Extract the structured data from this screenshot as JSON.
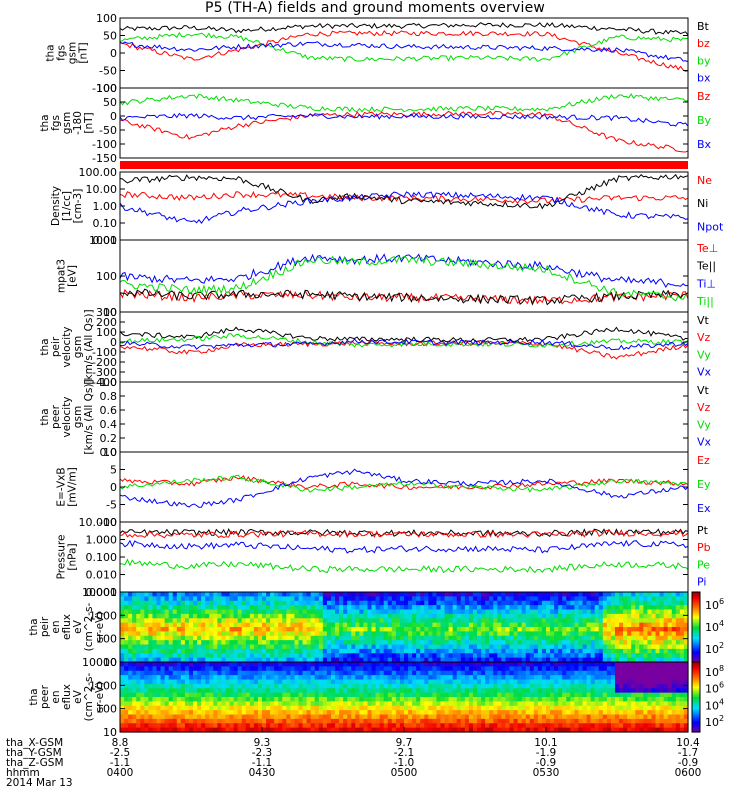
{
  "title": "P5 (TH-A) fields and ground moments overview",
  "date_label": "2014 Mar 13",
  "ephemeris": {
    "rows": [
      {
        "label": "tha_X-GSM",
        "values": [
          "8.8",
          "9.3",
          "9.7",
          "10.1",
          "10.4"
        ]
      },
      {
        "label": "tha_Y-GSM",
        "values": [
          "-2.5",
          "-2.3",
          "-2.1",
          "-1.9",
          "-1.7"
        ]
      },
      {
        "label": "tha_Z-GSM",
        "values": [
          "-1.1",
          "-1.1",
          "-1.0",
          "-0.9",
          "-0.9"
        ]
      },
      {
        "label": "hhmm",
        "values": [
          "0400",
          "0430",
          "0500",
          "0530",
          "0600"
        ]
      }
    ]
  },
  "chart_data": [
    {
      "type": "line",
      "panel": "fgs-dsl",
      "ylabel": [
        "tha",
        "fgs",
        "gsm",
        "[nT]"
      ],
      "yticks": [
        "100",
        "50",
        "0",
        "-50",
        "-100"
      ],
      "ylim": [
        -110,
        110
      ],
      "legend": [
        {
          "name": "Bt",
          "color": "#000000"
        },
        {
          "name": "bz",
          "color": "#ff0000"
        },
        {
          "name": "by",
          "color": "#00dd00"
        },
        {
          "name": "bx",
          "color": "#0000ff"
        }
      ],
      "x": [
        0,
        15,
        25,
        40,
        50,
        60,
        75,
        90,
        105,
        120
      ],
      "series": [
        {
          "name": "Bt",
          "color": "#000000",
          "values": [
            75,
            80,
            70,
            85,
            85,
            85,
            88,
            88,
            75,
            60
          ]
        },
        {
          "name": "bz",
          "color": "#ff0000",
          "values": [
            30,
            -20,
            10,
            60,
            62,
            62,
            62,
            60,
            0,
            -55
          ]
        },
        {
          "name": "by",
          "color": "#00dd00",
          "values": [
            40,
            60,
            50,
            -15,
            -20,
            -18,
            -15,
            -20,
            50,
            40
          ]
        },
        {
          "name": "bx",
          "color": "#0000ff",
          "values": [
            30,
            10,
            20,
            30,
            25,
            20,
            18,
            15,
            10,
            -25
          ]
        }
      ]
    },
    {
      "type": "line",
      "panel": "fgs-gsm",
      "ylabel": [
        "tha",
        "fgs",
        "gsm",
        "-180",
        "[nT]"
      ],
      "yticks": [
        "100",
        "50",
        "0",
        "-50",
        "-100",
        "-150"
      ],
      "ylim": [
        -170,
        110
      ],
      "legend": [
        {
          "name": "Bz",
          "color": "#ff0000"
        },
        {
          "name": "By",
          "color": "#00dd00"
        },
        {
          "name": "Bx",
          "color": "#0000ff"
        }
      ],
      "x": [
        0,
        15,
        25,
        40,
        50,
        60,
        75,
        90,
        105,
        120
      ],
      "series": [
        {
          "name": "Bz",
          "color": "#ff0000",
          "values": [
            -20,
            -90,
            -40,
            0,
            5,
            5,
            8,
            5,
            -100,
            -140
          ]
        },
        {
          "name": "By",
          "color": "#00dd00",
          "values": [
            50,
            80,
            60,
            30,
            25,
            25,
            28,
            25,
            80,
            60
          ]
        },
        {
          "name": "Bx",
          "color": "#0000ff",
          "values": [
            -10,
            0,
            -10,
            0,
            -5,
            -3,
            -5,
            -5,
            -10,
            -40
          ]
        }
      ]
    },
    {
      "type": "line",
      "panel": "density",
      "log": true,
      "ylabel": [
        "Density",
        "[1/cc]",
        "[cm-3]"
      ],
      "yticks": [
        "100.00",
        "10.00",
        "1.00",
        "0.10",
        "0.01"
      ],
      "ylim": [
        0.01,
        100
      ],
      "legend": [
        {
          "name": "Ne",
          "color": "#ff0000"
        },
        {
          "name": "Ni",
          "color": "#000000"
        },
        {
          "name": "Npot",
          "color": "#0000ff"
        }
      ],
      "x": [
        0,
        15,
        25,
        40,
        50,
        60,
        75,
        90,
        105,
        120
      ],
      "series": [
        {
          "name": "Ne",
          "color": "#ff0000",
          "values": [
            5,
            3,
            5,
            4,
            3,
            3,
            2.5,
            2,
            3,
            3
          ]
        },
        {
          "name": "Ni",
          "color": "#000000",
          "values": [
            30,
            50,
            40,
            2,
            4,
            2,
            1.5,
            1,
            40,
            60
          ]
        },
        {
          "name": "Npot",
          "color": "#0000ff",
          "values": [
            1,
            0.1,
            0.5,
            2,
            3,
            5,
            4,
            3,
            0.3,
            0.2
          ]
        }
      ]
    },
    {
      "type": "line",
      "panel": "temperature",
      "log": true,
      "ylabel": [
        "mpat3",
        "[eV]"
      ],
      "yticks": [
        "1000",
        "100",
        "10"
      ],
      "ylim": [
        10,
        10000
      ],
      "legend": [
        {
          "name": "Te⊥",
          "color": "#ff0000"
        },
        {
          "name": "Te||",
          "color": "#000000"
        },
        {
          "name": "Ti⊥",
          "color": "#0000ff"
        },
        {
          "name": "Ti||",
          "color": "#00dd00"
        }
      ],
      "x": [
        0,
        15,
        25,
        40,
        50,
        60,
        75,
        90,
        105,
        120
      ],
      "series": [
        {
          "name": "Te⊥",
          "color": "#ff0000",
          "values": [
            60,
            40,
            50,
            50,
            40,
            40,
            35,
            30,
            40,
            50
          ]
        },
        {
          "name": "Te||",
          "color": "#000000",
          "values": [
            70,
            45,
            55,
            55,
            45,
            40,
            35,
            30,
            45,
            55
          ]
        },
        {
          "name": "Ti⊥",
          "color": "#0000ff",
          "values": [
            300,
            200,
            250,
            2000,
            1500,
            1800,
            1200,
            800,
            200,
            150
          ]
        },
        {
          "name": "Ti||",
          "color": "#00dd00",
          "values": [
            150,
            80,
            100,
            1500,
            1200,
            1500,
            1000,
            600,
            60,
            40
          ]
        }
      ]
    },
    {
      "type": "line",
      "panel": "ion-velocity",
      "ylabel": [
        "tha",
        "peir",
        "velocity",
        "gsm",
        "[km/s (All Qs)]"
      ],
      "yticks": [
        "300",
        "200",
        "100",
        "0",
        "-100",
        "-200",
        "-300",
        "-400"
      ],
      "ylim": [
        -400,
        320
      ],
      "legend": [
        {
          "name": "Vt",
          "color": "#000000"
        },
        {
          "name": "Vz",
          "color": "#ff0000"
        },
        {
          "name": "Vy",
          "color": "#00dd00"
        },
        {
          "name": "Vx",
          "color": "#0000ff"
        }
      ],
      "x": [
        0,
        15,
        25,
        40,
        50,
        60,
        75,
        90,
        105,
        120
      ],
      "series": [
        {
          "name": "Vt",
          "color": "#000000",
          "values": [
            100,
            60,
            150,
            50,
            40,
            40,
            30,
            40,
            150,
            40
          ]
        },
        {
          "name": "Vz",
          "color": "#ff0000",
          "values": [
            -30,
            -100,
            -20,
            -10,
            0,
            -5,
            0,
            -5,
            -150,
            -20
          ]
        },
        {
          "name": "Vy",
          "color": "#00dd00",
          "values": [
            20,
            40,
            80,
            10,
            -20,
            -10,
            -10,
            -20,
            20,
            10
          ]
        },
        {
          "name": "Vx",
          "color": "#0000ff",
          "values": [
            0,
            -40,
            -20,
            -10,
            20,
            10,
            5,
            10,
            -50,
            0
          ]
        }
      ]
    },
    {
      "type": "line",
      "panel": "electron-velocity",
      "ylabel": [
        "tha",
        "peer",
        "velocity",
        "gsm",
        "[km/s (All Qs)]"
      ],
      "yticks": [
        "1.0",
        "0.8",
        "0.6",
        "0.4",
        "0.2",
        "0.0"
      ],
      "ylim": [
        0,
        1
      ],
      "legend": [
        {
          "name": "Vt",
          "color": "#000000"
        },
        {
          "name": "Vz",
          "color": "#ff0000"
        },
        {
          "name": "Vy",
          "color": "#00dd00"
        },
        {
          "name": "Vx",
          "color": "#0000ff"
        }
      ],
      "x": [],
      "series": []
    },
    {
      "type": "line",
      "panel": "efield",
      "ylabel": [
        "E=-VxB",
        "[mV/m]"
      ],
      "yticks": [
        "10",
        "5",
        "0",
        "-5",
        "-10"
      ],
      "ylim": [
        -11,
        11
      ],
      "legend": [
        {
          "name": "Ez",
          "color": "#ff0000"
        },
        {
          "name": "Ey",
          "color": "#00dd00"
        },
        {
          "name": "Ex",
          "color": "#0000ff"
        }
      ],
      "x": [
        0,
        15,
        25,
        40,
        50,
        60,
        75,
        90,
        105,
        120
      ],
      "series": [
        {
          "name": "Ez",
          "color": "#ff0000",
          "values": [
            2,
            1,
            3,
            0,
            1,
            0,
            0,
            1,
            2,
            1
          ]
        },
        {
          "name": "Ey",
          "color": "#00dd00",
          "values": [
            0,
            2,
            3,
            -1,
            0,
            1,
            0,
            -1,
            2,
            1
          ]
        },
        {
          "name": "Ex",
          "color": "#0000ff",
          "values": [
            -3,
            -6,
            -4,
            3,
            5,
            2,
            1,
            2,
            -3,
            0
          ]
        }
      ]
    },
    {
      "type": "line",
      "panel": "pressure",
      "log": true,
      "ylabel": [
        "Pressure",
        "[nPa]"
      ],
      "yticks": [
        "10.000",
        "1.000",
        "0.100",
        "0.010",
        "0.001"
      ],
      "ylim": [
        0.001,
        10
      ],
      "legend": [
        {
          "name": "Pt",
          "color": "#000000"
        },
        {
          "name": "Pb",
          "color": "#ff0000"
        },
        {
          "name": "Pe",
          "color": "#00dd00"
        },
        {
          "name": "Pi",
          "color": "#0000ff"
        }
      ],
      "x": [
        0,
        15,
        25,
        40,
        50,
        60,
        75,
        90,
        105,
        120
      ],
      "series": [
        {
          "name": "Pt",
          "color": "#000000",
          "values": [
            2.5,
            2.5,
            2.6,
            2.5,
            2.4,
            2.3,
            2.3,
            2.2,
            2.8,
            2.6
          ]
        },
        {
          "name": "Pb",
          "color": "#ff0000",
          "values": [
            2,
            1.8,
            2,
            2.2,
            2.1,
            2,
            2,
            1.9,
            2.4,
            2.2
          ]
        },
        {
          "name": "Pe",
          "color": "#00dd00",
          "values": [
            0.05,
            0.03,
            0.04,
            0.02,
            0.02,
            0.02,
            0.02,
            0.02,
            0.04,
            0.03
          ]
        },
        {
          "name": "Pi",
          "color": "#0000ff",
          "values": [
            0.6,
            0.4,
            0.5,
            0.3,
            0.25,
            0.3,
            0.3,
            0.25,
            0.6,
            0.5
          ]
        }
      ]
    },
    {
      "type": "heatmap",
      "panel": "ion-spectrogram",
      "log": true,
      "ylabel": [
        "tha",
        "peir",
        "en",
        "eflux",
        "eV",
        "(cm^2-s-",
        "sr-eV)"
      ],
      "yticks": [
        "10000",
        "1000",
        "100",
        "10"
      ],
      "ylim": [
        10,
        20000
      ],
      "colorbar_ticks": [
        "10^6",
        "10^4",
        "10^2"
      ]
    },
    {
      "type": "heatmap",
      "panel": "electron-spectrogram",
      "log": true,
      "ylabel": [
        "tha",
        "peer",
        "en",
        "eflux",
        "eV",
        "(cm^2-s-",
        "sr-eV)"
      ],
      "yticks": [
        "10000",
        "1000",
        "100",
        "10"
      ],
      "ylim": [
        10,
        20000
      ],
      "colorbar_ticks": [
        "10^8",
        "10^6",
        "10^4",
        "10^2"
      ]
    }
  ]
}
